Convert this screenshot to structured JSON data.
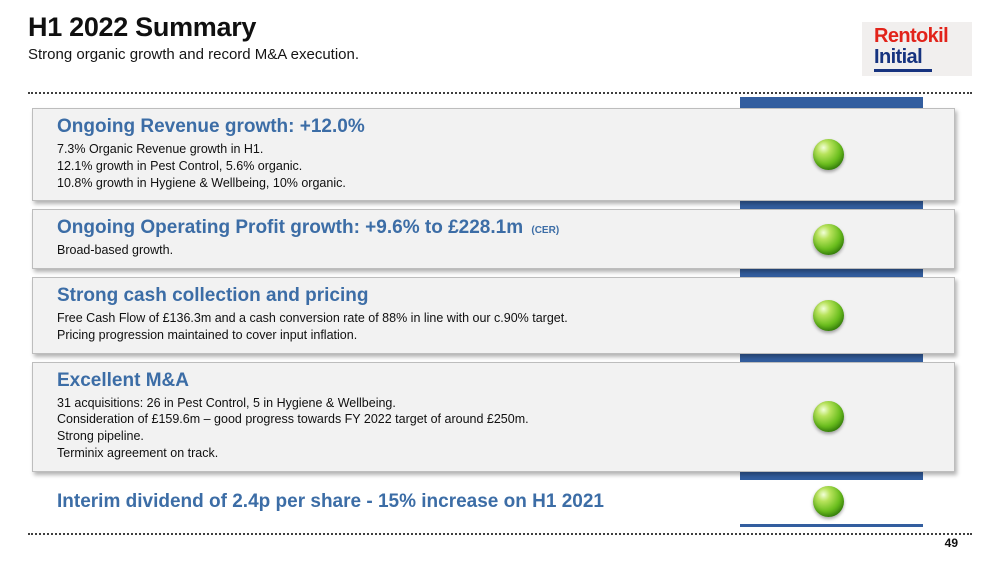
{
  "slide": {
    "title": "H1 2022 Summary",
    "subtitle": "Strong organic growth and record M&A execution.",
    "page_number": "49",
    "logo": {
      "line1": "Rentokil",
      "line2": "Initial"
    }
  },
  "sections": [
    {
      "heading": "Ongoing Revenue growth: +12.0%",
      "heading_suffix": "",
      "lines": [
        "7.3% Organic Revenue growth in H1.",
        "12.1% growth in Pest Control, 5.6% organic.",
        "10.8% growth in Hygiene & Wellbeing, 10% organic."
      ],
      "status": "green"
    },
    {
      "heading": "Ongoing Operating Profit growth: +9.6% to £228.1m",
      "heading_suffix": "(CER)",
      "lines": [
        "Broad-based growth."
      ],
      "status": "green"
    },
    {
      "heading": "Strong cash collection and pricing",
      "heading_suffix": "",
      "lines": [
        "Free Cash Flow of £136.3m and a cash conversion rate of 88% in line with our c.90% target.",
        "Pricing progression maintained to cover input inflation."
      ],
      "status": "green"
    },
    {
      "heading": "Excellent M&A",
      "heading_suffix": "",
      "lines": [
        "31 acquisitions: 26 in Pest Control, 5 in Hygiene & Wellbeing.",
        "Consideration of £159.6m – good progress towards FY 2022 target of around £250m.",
        "Strong pipeline.",
        "Terminix agreement on track."
      ],
      "status": "green"
    },
    {
      "heading": "Interim dividend of 2.4p per share - 15% increase on H1 2021",
      "heading_suffix": "",
      "lines": [],
      "status": "green"
    }
  ],
  "colors": {
    "heading_blue": "#3c6da6",
    "bar_blue": "#335e9f",
    "ball_green": "#5aa317",
    "logo_red": "#e2231a",
    "logo_navy": "#16337f"
  }
}
